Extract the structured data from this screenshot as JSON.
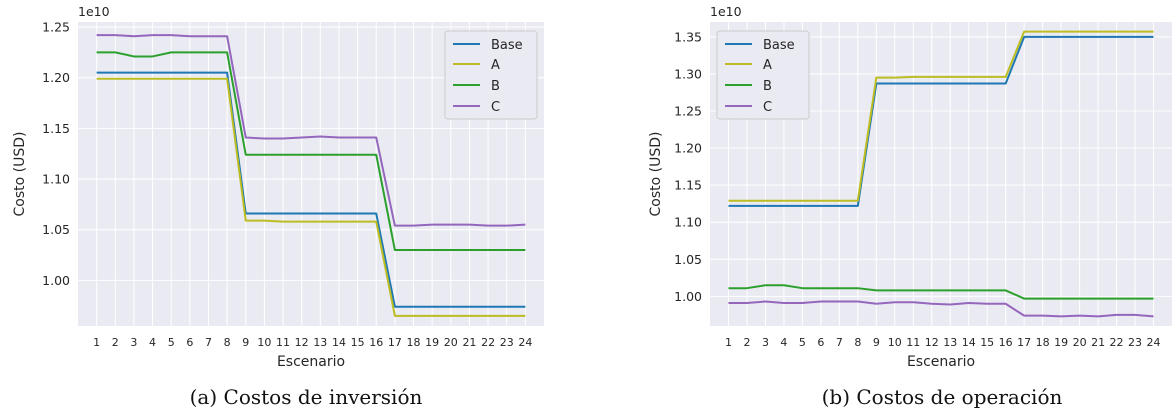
{
  "chart_data": [
    {
      "type": "line",
      "caption": "(a) Costos de inversión",
      "xlabel": "Escenario",
      "ylabel": "Costo (USD)",
      "offset_text": "1e10",
      "xlim": [
        0,
        25
      ],
      "ylim": [
        0.955,
        1.255
      ],
      "yticks": [
        1.0,
        1.05,
        1.1,
        1.15,
        1.2,
        1.25
      ],
      "ytick_labels": [
        "1.00",
        "1.05",
        "1.10",
        "1.15",
        "1.20",
        "1.25"
      ],
      "x": [
        1,
        2,
        3,
        4,
        5,
        6,
        7,
        8,
        9,
        10,
        11,
        12,
        13,
        14,
        15,
        16,
        17,
        18,
        19,
        20,
        21,
        22,
        23,
        24
      ],
      "grid": true,
      "legend": "top-right",
      "series": [
        {
          "name": "Base",
          "color": "#1f77b4",
          "values": [
            1.205,
            1.205,
            1.205,
            1.205,
            1.205,
            1.205,
            1.205,
            1.205,
            1.066,
            1.066,
            1.066,
            1.066,
            1.066,
            1.066,
            1.066,
            1.066,
            0.974,
            0.974,
            0.974,
            0.974,
            0.974,
            0.974,
            0.974,
            0.974
          ]
        },
        {
          "name": "A",
          "color": "#bcbd22",
          "values": [
            1.199,
            1.199,
            1.199,
            1.199,
            1.199,
            1.199,
            1.199,
            1.199,
            1.059,
            1.059,
            1.058,
            1.058,
            1.058,
            1.058,
            1.058,
            1.058,
            0.965,
            0.965,
            0.965,
            0.965,
            0.965,
            0.965,
            0.965,
            0.965
          ]
        },
        {
          "name": "B",
          "color": "#2ca02c",
          "values": [
            1.225,
            1.225,
            1.221,
            1.221,
            1.225,
            1.225,
            1.225,
            1.225,
            1.124,
            1.124,
            1.124,
            1.124,
            1.124,
            1.124,
            1.124,
            1.124,
            1.03,
            1.03,
            1.03,
            1.03,
            1.03,
            1.03,
            1.03,
            1.03
          ]
        },
        {
          "name": "C",
          "color": "#9467bd",
          "values": [
            1.242,
            1.242,
            1.241,
            1.242,
            1.242,
            1.241,
            1.241,
            1.241,
            1.141,
            1.14,
            1.14,
            1.141,
            1.142,
            1.141,
            1.141,
            1.141,
            1.054,
            1.054,
            1.055,
            1.055,
            1.055,
            1.054,
            1.054,
            1.055
          ]
        }
      ]
    },
    {
      "type": "line",
      "caption": "(b) Costos de operación",
      "xlabel": "Escenario",
      "ylabel": "Costo (USD)",
      "offset_text": "1e10",
      "xlim": [
        0,
        25
      ],
      "ylim": [
        0.96,
        1.37
      ],
      "yticks": [
        1.0,
        1.05,
        1.1,
        1.15,
        1.2,
        1.25,
        1.3,
        1.35
      ],
      "ytick_labels": [
        "1.00",
        "1.05",
        "1.10",
        "1.15",
        "1.20",
        "1.25",
        "1.30",
        "1.35"
      ],
      "x": [
        1,
        2,
        3,
        4,
        5,
        6,
        7,
        8,
        9,
        10,
        11,
        12,
        13,
        14,
        15,
        16,
        17,
        18,
        19,
        20,
        21,
        22,
        23,
        24
      ],
      "grid": true,
      "legend": "top-left",
      "series": [
        {
          "name": "Base",
          "color": "#1f77b4",
          "values": [
            1.122,
            1.122,
            1.122,
            1.122,
            1.122,
            1.122,
            1.122,
            1.122,
            1.287,
            1.287,
            1.287,
            1.287,
            1.287,
            1.287,
            1.287,
            1.287,
            1.35,
            1.35,
            1.35,
            1.35,
            1.35,
            1.35,
            1.35,
            1.35
          ]
        },
        {
          "name": "A",
          "color": "#bcbd22",
          "values": [
            1.129,
            1.129,
            1.129,
            1.129,
            1.129,
            1.129,
            1.129,
            1.129,
            1.295,
            1.295,
            1.296,
            1.296,
            1.296,
            1.296,
            1.296,
            1.296,
            1.357,
            1.357,
            1.357,
            1.357,
            1.357,
            1.357,
            1.357,
            1.357
          ]
        },
        {
          "name": "B",
          "color": "#2ca02c",
          "values": [
            1.011,
            1.011,
            1.015,
            1.015,
            1.011,
            1.011,
            1.011,
            1.011,
            1.008,
            1.008,
            1.008,
            1.008,
            1.008,
            1.008,
            1.008,
            1.008,
            0.997,
            0.997,
            0.997,
            0.997,
            0.997,
            0.997,
            0.997,
            0.997
          ]
        },
        {
          "name": "C",
          "color": "#9467bd",
          "values": [
            0.991,
            0.991,
            0.993,
            0.991,
            0.991,
            0.993,
            0.993,
            0.993,
            0.99,
            0.992,
            0.992,
            0.99,
            0.989,
            0.991,
            0.99,
            0.99,
            0.974,
            0.974,
            0.973,
            0.974,
            0.973,
            0.975,
            0.975,
            0.973
          ]
        }
      ]
    }
  ]
}
